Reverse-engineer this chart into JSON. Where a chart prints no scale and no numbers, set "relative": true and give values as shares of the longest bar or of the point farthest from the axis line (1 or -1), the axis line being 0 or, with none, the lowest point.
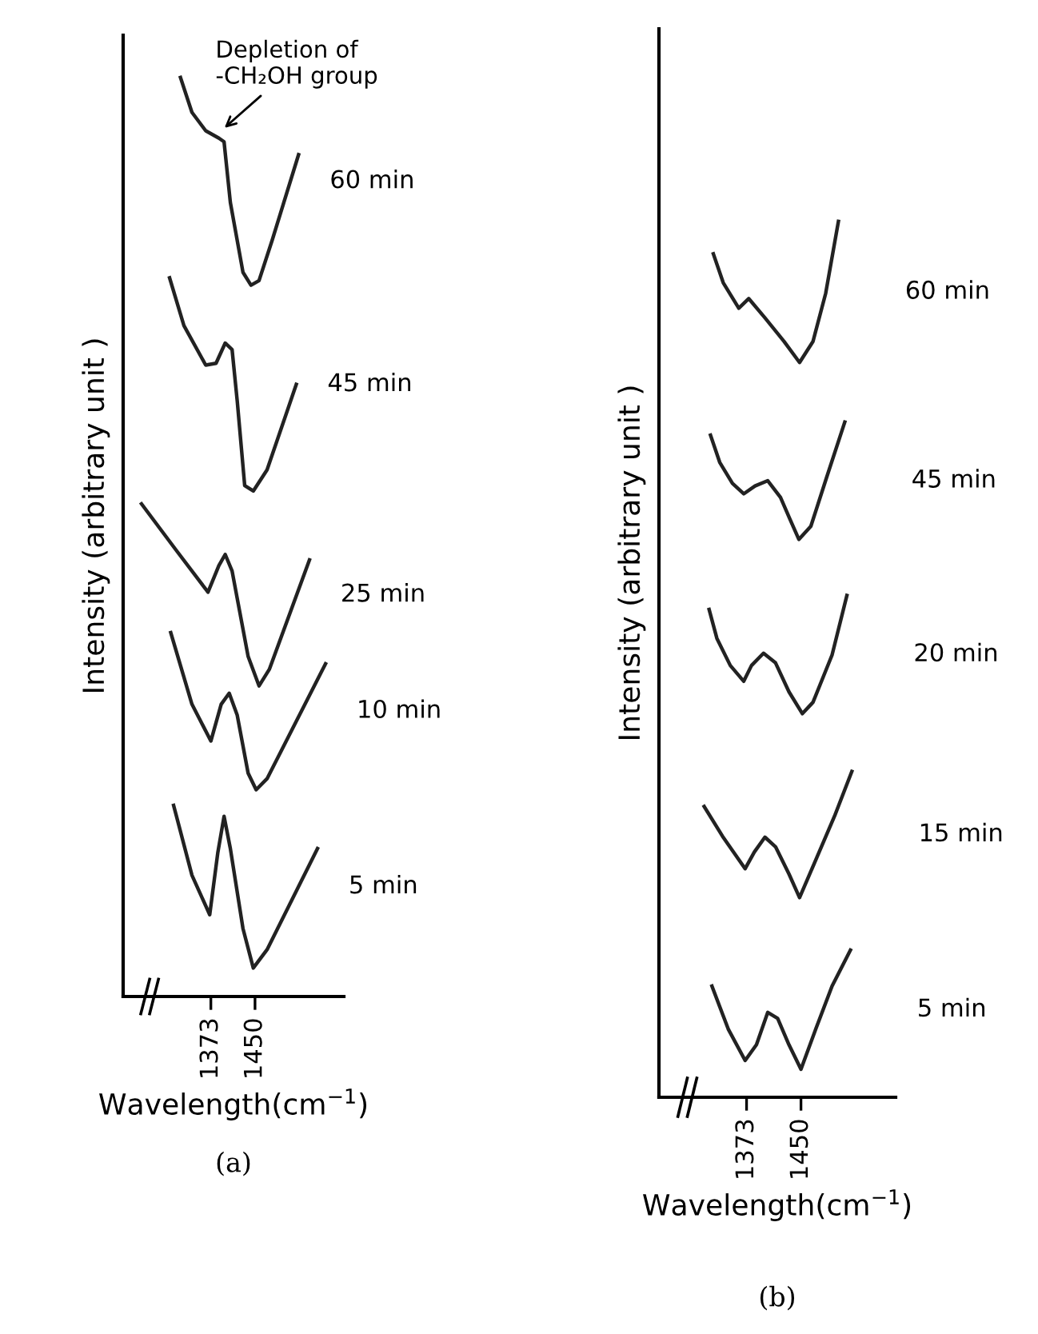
{
  "chart_data": [
    {
      "type": "line",
      "title": "(a)",
      "xlabel": "Wavelength(cm$^{−1}$)",
      "ylabel": "Intensity (arbitrary unit )",
      "relative": true,
      "xlim": [
        1220,
        1605
      ],
      "xticks": [
        1373,
        1450
      ],
      "grid": false,
      "legend": false,
      "marker": "none",
      "line_style": "solid",
      "annotations": [
        {
          "text": "Depletion of\n-CH₂OH group",
          "x": 1391,
          "y": 0.942
        }
      ],
      "series": [
        {
          "name": "60 min",
          "color": "#222222",
          "x": [
            1320,
            1340,
            1364,
            1387,
            1396,
            1407,
            1429,
            1443,
            1457,
            1480,
            1526
          ],
          "values": [
            1.0,
            0.962,
            0.942,
            0.934,
            0.93,
            0.864,
            0.788,
            0.774,
            0.779,
            0.823,
            0.916
          ]
        },
        {
          "name": "45 min",
          "color": "#222222",
          "x": [
            1301,
            1326,
            1364,
            1382,
            1398,
            1410,
            1419,
            1432,
            1447,
            1471,
            1522
          ],
          "values": [
            0.782,
            0.73,
            0.687,
            0.689,
            0.711,
            0.704,
            0.648,
            0.556,
            0.55,
            0.573,
            0.666
          ]
        },
        {
          "name": "25 min",
          "color": "#222222",
          "x": [
            1252,
            1312,
            1368,
            1387,
            1398,
            1410,
            1438,
            1457,
            1475,
            1545
          ],
          "values": [
            0.536,
            0.486,
            0.44,
            0.469,
            0.481,
            0.463,
            0.37,
            0.338,
            0.356,
            0.475
          ]
        },
        {
          "name": "10 min",
          "color": "#222222",
          "x": [
            1303,
            1340,
            1373,
            1391,
            1405,
            1419,
            1438,
            1452,
            1471,
            1573
          ],
          "values": [
            0.396,
            0.318,
            0.278,
            0.318,
            0.33,
            0.306,
            0.243,
            0.225,
            0.237,
            0.362
          ]
        },
        {
          "name": "5 min",
          "color": "#222222",
          "x": [
            1308,
            1340,
            1371,
            1385,
            1396,
            1407,
            1429,
            1447,
            1471,
            1559
          ],
          "values": [
            0.208,
            0.132,
            0.089,
            0.156,
            0.196,
            0.161,
            0.074,
            0.031,
            0.051,
            0.161
          ]
        }
      ]
    },
    {
      "type": "line",
      "title": "(b)",
      "xlabel": "Wavelength(cm$^{−1}$)",
      "ylabel": "Intensity (arbitrary unit )",
      "relative": true,
      "xlim": [
        1249,
        1584
      ],
      "xticks": [
        1373,
        1450
      ],
      "grid": false,
      "legend": false,
      "marker": "none",
      "line_style": "solid",
      "series": [
        {
          "name": "60 min",
          "color": "#222222",
          "x": [
            1326,
            1340,
            1362,
            1376,
            1399,
            1426,
            1448,
            1467,
            1485,
            1503
          ],
          "values": [
            0.963,
            0.93,
            0.901,
            0.912,
            0.89,
            0.863,
            0.839,
            0.863,
            0.918,
            1.0
          ]
        },
        {
          "name": "45 min",
          "color": "#222222",
          "x": [
            1322,
            1335,
            1353,
            1369,
            1385,
            1403,
            1421,
            1435,
            1447,
            1464,
            1486,
            1512
          ],
          "values": [
            0.756,
            0.725,
            0.701,
            0.689,
            0.698,
            0.704,
            0.685,
            0.659,
            0.637,
            0.652,
            0.707,
            0.771
          ]
        },
        {
          "name": "20 min",
          "color": "#222222",
          "x": [
            1320,
            1331,
            1350,
            1369,
            1380,
            1397,
            1414,
            1433,
            1452,
            1467,
            1494,
            1515
          ],
          "values": [
            0.557,
            0.524,
            0.493,
            0.475,
            0.493,
            0.507,
            0.496,
            0.463,
            0.438,
            0.451,
            0.505,
            0.573
          ]
        },
        {
          "name": "15 min",
          "color": "#222222",
          "x": [
            1313,
            1339,
            1371,
            1384,
            1399,
            1414,
            1433,
            1448,
            1471,
            1498,
            1522
          ],
          "values": [
            0.332,
            0.298,
            0.261,
            0.28,
            0.297,
            0.286,
            0.255,
            0.228,
            0.271,
            0.322,
            0.372
          ]
        },
        {
          "name": "5 min",
          "color": "#222222",
          "x": [
            1324,
            1347,
            1371,
            1387,
            1403,
            1417,
            1433,
            1450,
            1471,
            1494,
            1520
          ],
          "values": [
            0.127,
            0.078,
            0.042,
            0.06,
            0.097,
            0.09,
            0.06,
            0.032,
            0.078,
            0.127,
            0.168
          ]
        }
      ]
    }
  ]
}
